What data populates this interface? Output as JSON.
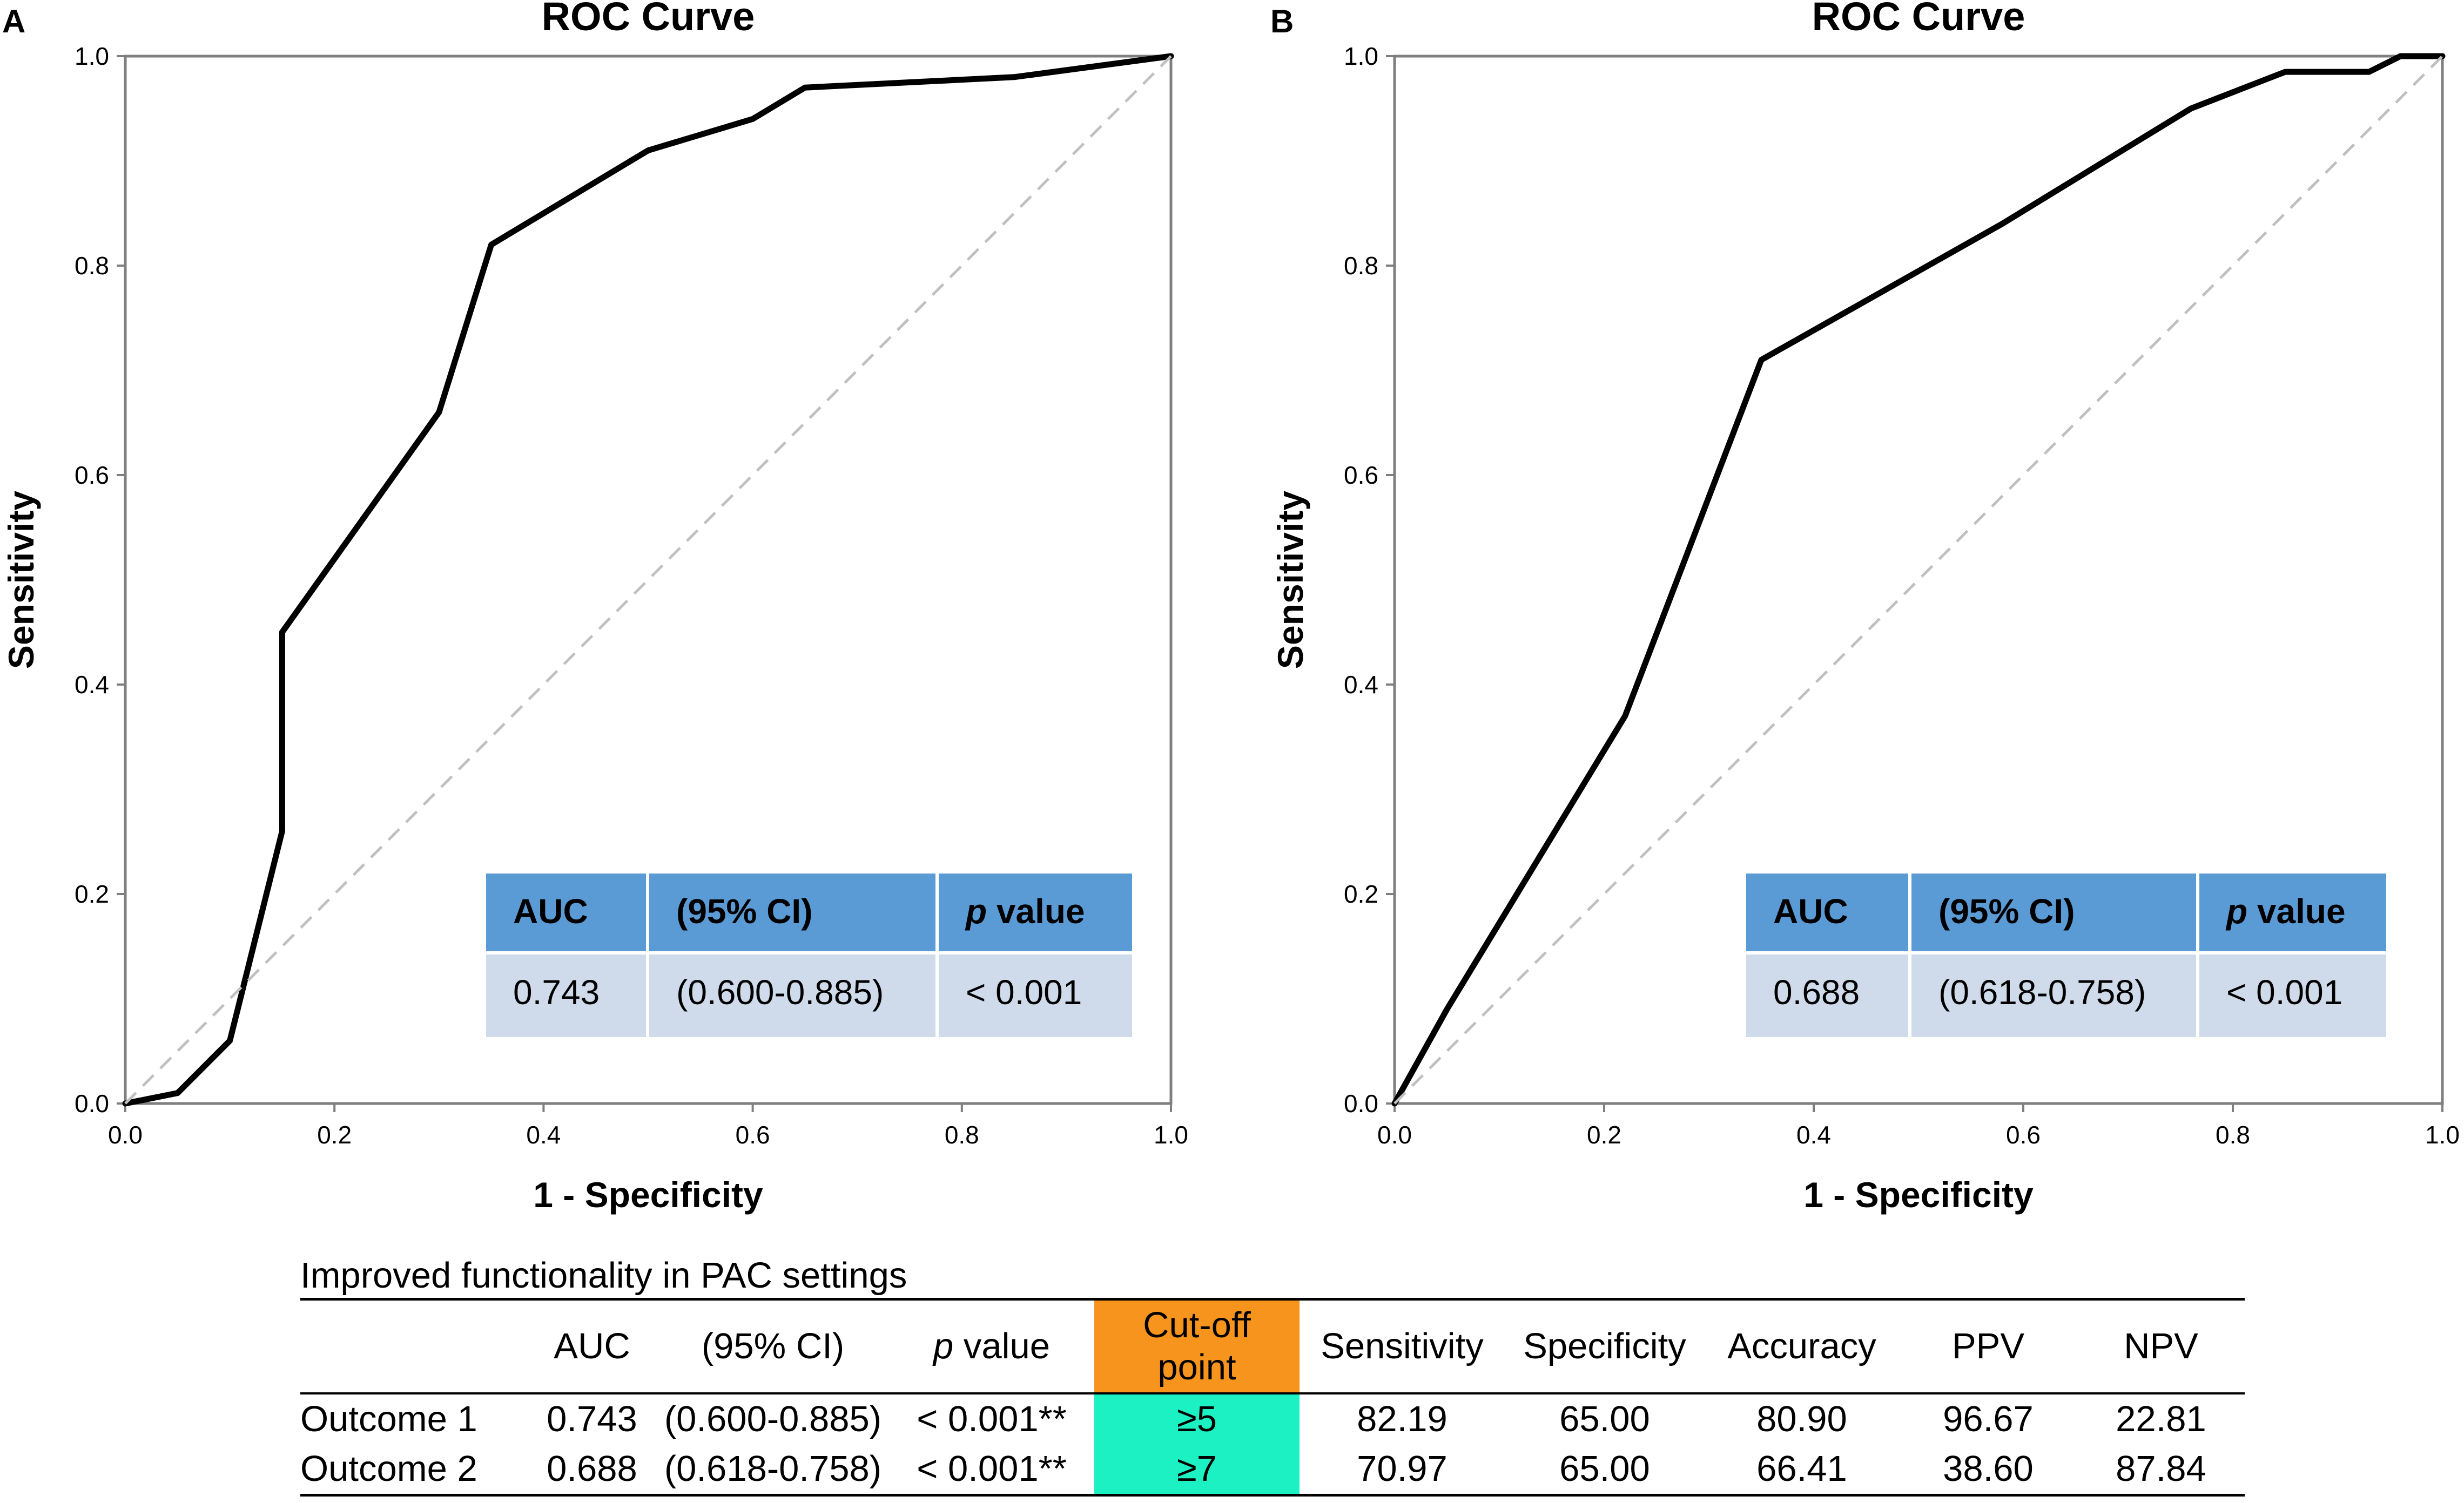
{
  "colors": {
    "curve": "#000000",
    "reference": "#c0c0c0",
    "inset_header": "#5b9bd5",
    "inset_body": "#cfdaea",
    "cutoff_header": "#f7941d",
    "cutoff_cell": "#1cf1c4"
  },
  "chart_data": [
    {
      "panel": "A",
      "type": "line",
      "title": "ROC Curve",
      "xlabel": "1 - Specificity",
      "ylabel": "Sensitivity",
      "xlim": [
        0,
        1
      ],
      "ylim": [
        0,
        1
      ],
      "xticks": [
        "0.0",
        "0.2",
        "0.4",
        "0.6",
        "0.8",
        "1.0"
      ],
      "yticks": [
        "0.0",
        "0.2",
        "0.4",
        "0.6",
        "0.8",
        "1.0"
      ],
      "legend": "none",
      "series": [
        {
          "name": "ROC",
          "x": [
            0,
            0.05,
            0.1,
            0.15,
            0.15,
            0.3,
            0.35,
            0.5,
            0.6,
            0.65,
            0.85,
            1.0
          ],
          "y": [
            0,
            0.01,
            0.06,
            0.26,
            0.45,
            0.66,
            0.82,
            0.91,
            0.94,
            0.97,
            0.98,
            1.0
          ]
        },
        {
          "name": "Reference",
          "x": [
            0,
            1
          ],
          "y": [
            0,
            1
          ]
        }
      ],
      "inset": {
        "headers": [
          "AUC",
          "(95% CI)",
          "p value"
        ],
        "values": [
          "0.743",
          "(0.600-0.885)",
          "< 0.001"
        ]
      }
    },
    {
      "panel": "B",
      "type": "line",
      "title": "ROC Curve",
      "xlabel": "1 - Specificity",
      "ylabel": "Sensitivity",
      "xlim": [
        0,
        1
      ],
      "ylim": [
        0,
        1
      ],
      "xticks": [
        "0.0",
        "0.2",
        "0.4",
        "0.6",
        "0.8",
        "1.0"
      ],
      "yticks": [
        "0.0",
        "0.2",
        "0.4",
        "0.6",
        "0.8",
        "1.0"
      ],
      "legend": "none",
      "series": [
        {
          "name": "ROC",
          "x": [
            0,
            0.05,
            0.22,
            0.35,
            0.58,
            0.76,
            0.85,
            0.93,
            0.96,
            1.0
          ],
          "y": [
            0,
            0.09,
            0.37,
            0.71,
            0.84,
            0.95,
            0.985,
            0.985,
            1.0,
            1.0
          ]
        },
        {
          "name": "Reference",
          "x": [
            0,
            1
          ],
          "y": [
            0,
            1
          ]
        }
      ],
      "inset": {
        "headers": [
          "AUC",
          "(95% CI)",
          "p value"
        ],
        "values": [
          "0.688",
          "(0.618-0.758)",
          "< 0.001"
        ]
      }
    },
    {
      "type": "table",
      "caption": "Improved functionality in PAC settings",
      "columns": [
        "",
        "AUC",
        "(95% CI)",
        "p value",
        "Cut-off point",
        "Sensitivity",
        "Specificity",
        "Accuracy",
        "PPV",
        "NPV"
      ],
      "rows": [
        [
          "Outcome 1",
          "0.743",
          "(0.600-0.885)",
          "< 0.001**",
          "≥5",
          "82.19",
          "65.00",
          "80.90",
          "96.67",
          "22.81"
        ],
        [
          "Outcome 2",
          "0.688",
          "(0.618-0.758)",
          "< 0.001**",
          "≥7",
          "70.97",
          "65.00",
          "66.41",
          "38.60",
          "87.84"
        ]
      ]
    }
  ],
  "table": {
    "caption": "Improved functionality in PAC settings",
    "headers": {
      "auc": "AUC",
      "ci": "(95% CI)",
      "p_italic": "p",
      "p_rest": " value",
      "cutoff_line1": "Cut-off",
      "cutoff_line2": "point",
      "sensitivity": "Sensitivity",
      "specificity": "Specificity",
      "accuracy": "Accuracy",
      "ppv": "PPV",
      "npv": "NPV"
    },
    "rows": [
      {
        "label": "Outcome 1",
        "auc": "0.743",
        "ci": "(0.600-0.885)",
        "p": "< 0.001**",
        "cutoff": "≥5",
        "sensitivity": "82.19",
        "specificity": "65.00",
        "accuracy": "80.90",
        "ppv": "96.67",
        "npv": "22.81"
      },
      {
        "label": "Outcome 2",
        "auc": "0.688",
        "ci": "(0.618-0.758)",
        "p": "< 0.001**",
        "cutoff": "≥7",
        "sensitivity": "70.97",
        "specificity": "65.00",
        "accuracy": "66.41",
        "ppv": "38.60",
        "npv": "87.84"
      }
    ]
  }
}
